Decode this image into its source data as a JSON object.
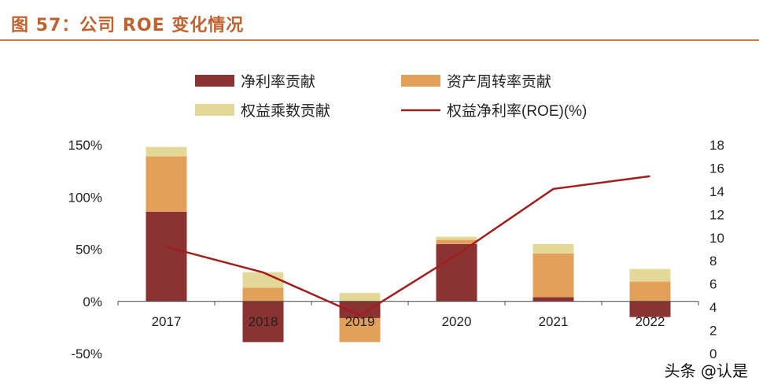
{
  "header": {
    "title": "图 57：公司 ROE 变化情况"
  },
  "watermark": "头条 @认是",
  "colors": {
    "net_margin": "#8B3232",
    "asset_turnover": "#E3A05B",
    "equity_multiplier": "#E3D897",
    "roe_line": "#A01E1E",
    "title": "#C0622F",
    "axis": "#444444"
  },
  "chart_data": {
    "type": "bar",
    "stacked": true,
    "categories": [
      "2017",
      "2018",
      "2019",
      "2020",
      "2021",
      "2022"
    ],
    "series": [
      {
        "name": "净利率贡献",
        "type": "bar",
        "axis": "left",
        "values": [
          86,
          -39,
          -16,
          55,
          4,
          -15
        ]
      },
      {
        "name": "资产周转率贡献",
        "type": "bar",
        "axis": "left",
        "values": [
          53,
          13,
          -23,
          4,
          42,
          19
        ]
      },
      {
        "name": "权益乘数贡献",
        "type": "bar",
        "axis": "left",
        "values": [
          9,
          15,
          8,
          3,
          9,
          12
        ]
      },
      {
        "name": "权益净利率(ROE)(%)",
        "type": "line",
        "axis": "right",
        "values": [
          9.2,
          7.0,
          3.3,
          8.5,
          14.2,
          15.3
        ]
      }
    ],
    "left_axis": {
      "min": -50,
      "max": 150,
      "step": 50,
      "tick_labels": [
        "-50%",
        "0%",
        "50%",
        "100%",
        "150%"
      ]
    },
    "right_axis": {
      "min": 0,
      "max": 18,
      "step": 2,
      "tick_labels": [
        "0",
        "2",
        "4",
        "6",
        "8",
        "10",
        "12",
        "14",
        "16",
        "18"
      ]
    },
    "legend_position": "top",
    "grid": false
  }
}
